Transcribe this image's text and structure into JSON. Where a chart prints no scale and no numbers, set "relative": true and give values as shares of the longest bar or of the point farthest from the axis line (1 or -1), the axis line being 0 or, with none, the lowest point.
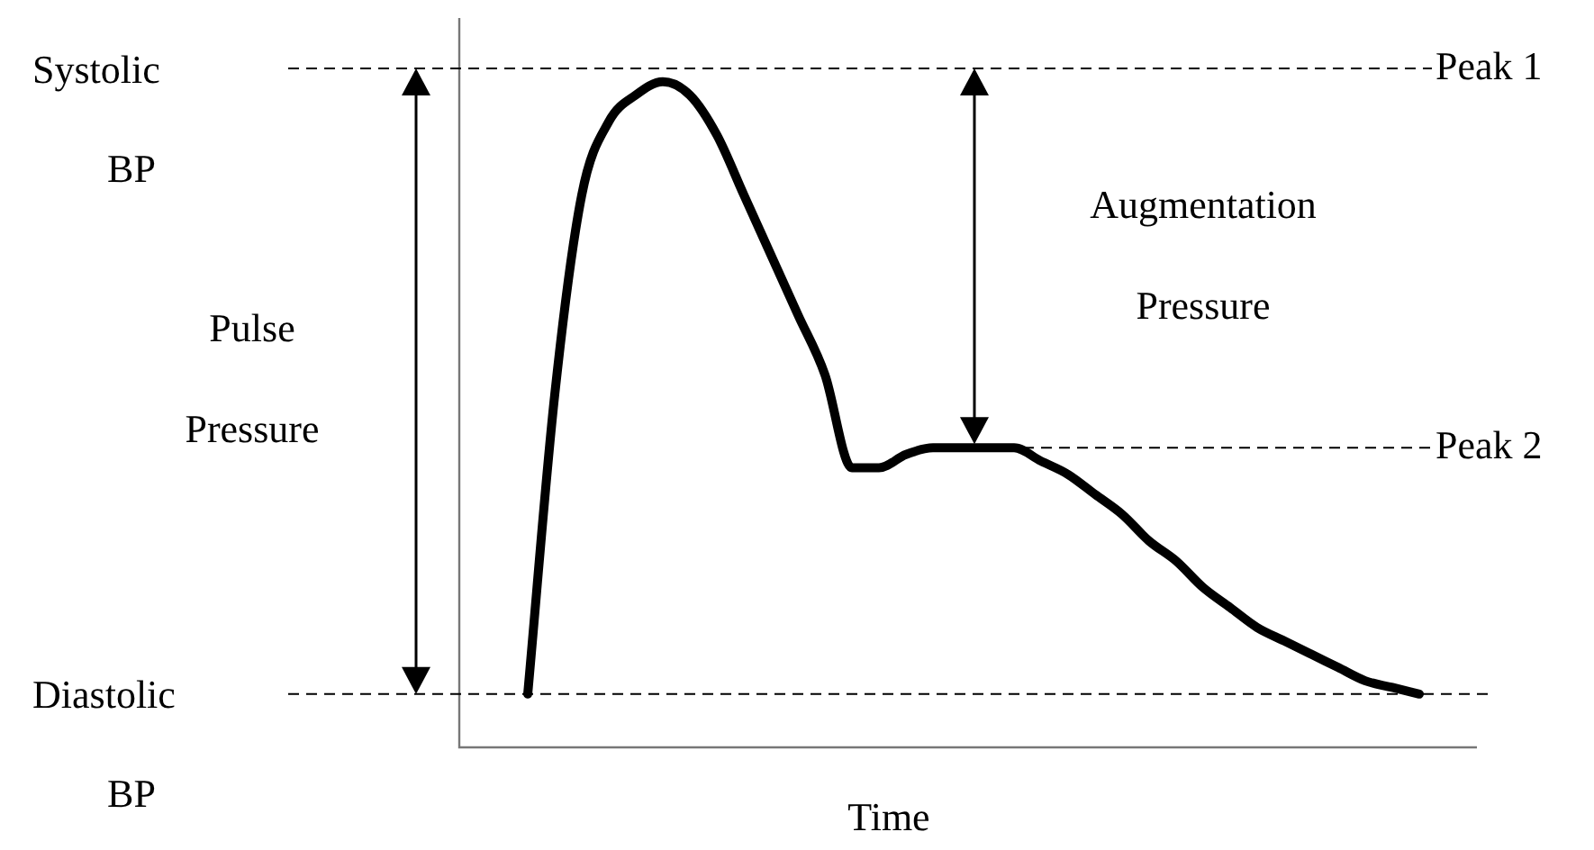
{
  "chart_data": {
    "type": "line",
    "relative": true,
    "xlabel": "Time",
    "categories": [
      null,
      null,
      null,
      null,
      null,
      null,
      null,
      null,
      null,
      null,
      null,
      null,
      null,
      null,
      null,
      null,
      null,
      null,
      null,
      null,
      null,
      null,
      null,
      null,
      null,
      null,
      null,
      null,
      null,
      null,
      null,
      null,
      null,
      null
    ],
    "series": [
      {
        "color": "#000000",
        "values": [
          0.08,
          0.53,
          0.83,
          0.94,
          0.98,
          1,
          0.98,
          0.92,
          0.83,
          0.74,
          0.65,
          0.56,
          0.42,
          0.42,
          0.44,
          0.45,
          0.45,
          0.45,
          0.45,
          0.43,
          0.41,
          0.38,
          0.35,
          0.31,
          0.28,
          0.24,
          0.21,
          0.18,
          0.16,
          0.14,
          0.12,
          0.1,
          0.09,
          0.08
        ]
      }
    ],
    "ref_lines": [
      {
        "axis": "y",
        "value": 1.02,
        "label": "Peak 1",
        "line_style": "dashed",
        "color": "#000000"
      },
      {
        "axis": "y",
        "value": 0.08,
        "line_style": "dashed",
        "color": "#000000"
      },
      {
        "axis": "y",
        "value": 0.45,
        "label": "Peak 2",
        "line_style": "dashed",
        "color": "#000000"
      }
    ],
    "annotations": [
      "Systolic BP",
      "Diastolic BP",
      "Pulse Pressure",
      "Augmentation Pressure"
    ],
    "grid": false,
    "legend": false,
    "marker": "none",
    "line_style": "solid"
  }
}
